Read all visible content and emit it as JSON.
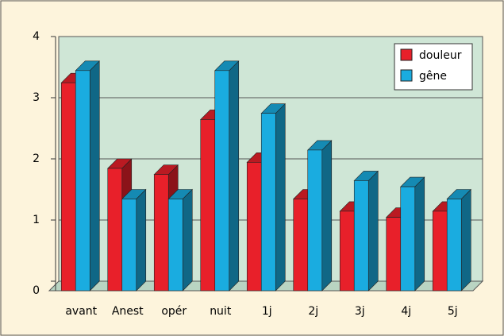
{
  "chart_data": {
    "type": "bar3d",
    "categories": [
      "avant",
      "Anest",
      "opér",
      "nuit",
      "1j",
      "2j",
      "3j",
      "4j",
      "5j"
    ],
    "series": [
      {
        "name": "douleur",
        "color": "#e8202a",
        "values": [
          3.4,
          2.0,
          1.9,
          2.8,
          2.1,
          1.5,
          1.3,
          1.2,
          1.3
        ]
      },
      {
        "name": "gêne",
        "color": "#1aace0",
        "values": [
          3.6,
          1.5,
          1.5,
          3.6,
          2.9,
          2.3,
          1.8,
          1.7,
          1.5
        ]
      }
    ],
    "ylim": [
      0,
      4
    ],
    "yticks": [
      0,
      1,
      2,
      3,
      4
    ],
    "grid": true,
    "legend": "top-right"
  }
}
